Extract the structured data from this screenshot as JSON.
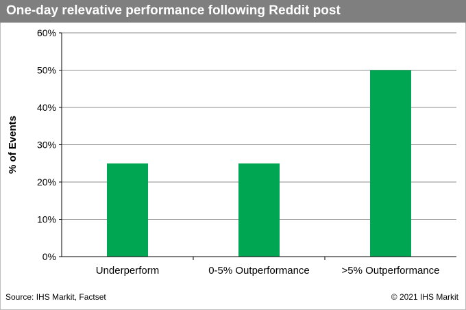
{
  "header": {
    "title": "One-day relevative performance following Reddit post"
  },
  "footer": {
    "source": "Source: IHS Markit, Factset",
    "copyright": "© 2021 IHS Markit"
  },
  "colors": {
    "bar": "#00a651",
    "title_bg": "#7f7f7f",
    "grid": "#8c8c8c"
  },
  "chart_data": {
    "type": "bar",
    "title": "",
    "ylabel": "% of Events",
    "xlabel": "",
    "categories": [
      "Underperform",
      "0-5% Outperformance",
      ">5% Outperformance"
    ],
    "values": [
      25,
      25,
      50
    ],
    "ylim": [
      0,
      60
    ],
    "yticks": [
      0,
      10,
      20,
      30,
      40,
      50,
      60
    ],
    "ytick_labels": [
      "0%",
      "10%",
      "20%",
      "30%",
      "40%",
      "50%",
      "60%"
    ],
    "grid": true,
    "legend": "none"
  }
}
